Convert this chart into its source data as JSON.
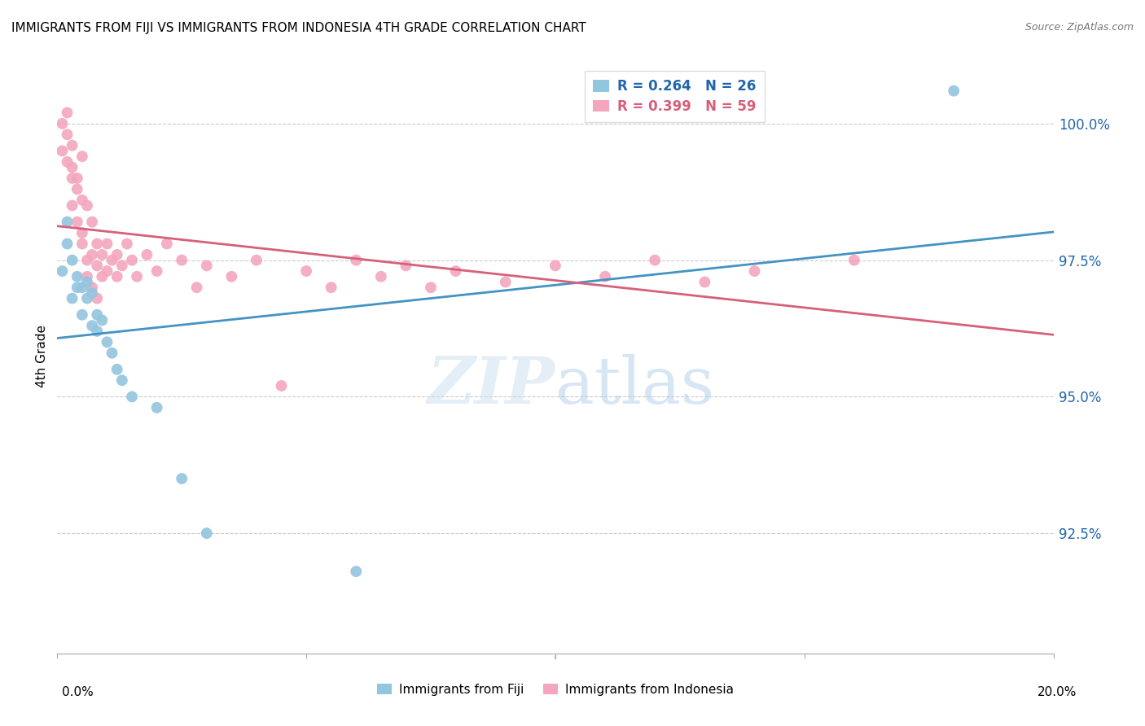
{
  "title": "IMMIGRANTS FROM FIJI VS IMMIGRANTS FROM INDONESIA 4TH GRADE CORRELATION CHART",
  "source": "Source: ZipAtlas.com",
  "ylabel": "4th Grade",
  "yticks": [
    92.5,
    95.0,
    97.5,
    100.0
  ],
  "ytick_labels": [
    "92.5%",
    "95.0%",
    "97.5%",
    "100.0%"
  ],
  "xlim": [
    0.0,
    0.2
  ],
  "ylim": [
    90.3,
    101.2
  ],
  "fiji_color": "#92c5de",
  "indonesia_color": "#f4a6be",
  "fiji_R": 0.264,
  "fiji_N": 26,
  "indonesia_R": 0.399,
  "indonesia_N": 59,
  "fiji_line_color": "#4393c3",
  "indonesia_line_color": "#d6607a",
  "watermark_zip": "ZIP",
  "watermark_atlas": "atlas",
  "fiji_x": [
    0.001,
    0.002,
    0.002,
    0.003,
    0.003,
    0.004,
    0.004,
    0.005,
    0.005,
    0.006,
    0.006,
    0.007,
    0.007,
    0.008,
    0.008,
    0.009,
    0.01,
    0.011,
    0.012,
    0.013,
    0.015,
    0.02,
    0.025,
    0.03,
    0.06,
    0.18
  ],
  "fiji_y": [
    97.3,
    97.8,
    98.2,
    96.8,
    97.5,
    97.0,
    97.2,
    96.5,
    97.0,
    96.8,
    97.1,
    96.3,
    96.9,
    96.5,
    96.2,
    96.4,
    96.0,
    95.8,
    95.5,
    95.3,
    95.0,
    94.8,
    93.5,
    92.5,
    91.8,
    100.6
  ],
  "indonesia_x": [
    0.001,
    0.001,
    0.002,
    0.002,
    0.002,
    0.003,
    0.003,
    0.003,
    0.003,
    0.004,
    0.004,
    0.004,
    0.005,
    0.005,
    0.005,
    0.005,
    0.006,
    0.006,
    0.006,
    0.007,
    0.007,
    0.007,
    0.008,
    0.008,
    0.008,
    0.009,
    0.009,
    0.01,
    0.01,
    0.011,
    0.012,
    0.012,
    0.013,
    0.014,
    0.015,
    0.016,
    0.018,
    0.02,
    0.022,
    0.025,
    0.028,
    0.03,
    0.035,
    0.04,
    0.045,
    0.05,
    0.055,
    0.06,
    0.065,
    0.07,
    0.075,
    0.08,
    0.09,
    0.1,
    0.11,
    0.12,
    0.13,
    0.14,
    0.16
  ],
  "indonesia_y": [
    99.5,
    100.0,
    99.8,
    100.2,
    99.3,
    99.6,
    99.0,
    98.5,
    99.2,
    99.0,
    98.8,
    98.2,
    99.4,
    98.6,
    98.0,
    97.8,
    98.5,
    97.5,
    97.2,
    98.2,
    97.6,
    97.0,
    97.8,
    97.4,
    96.8,
    97.6,
    97.2,
    97.8,
    97.3,
    97.5,
    97.6,
    97.2,
    97.4,
    97.8,
    97.5,
    97.2,
    97.6,
    97.3,
    97.8,
    97.5,
    97.0,
    97.4,
    97.2,
    97.5,
    95.2,
    97.3,
    97.0,
    97.5,
    97.2,
    97.4,
    97.0,
    97.3,
    97.1,
    97.4,
    97.2,
    97.5,
    97.1,
    97.3,
    97.5
  ]
}
